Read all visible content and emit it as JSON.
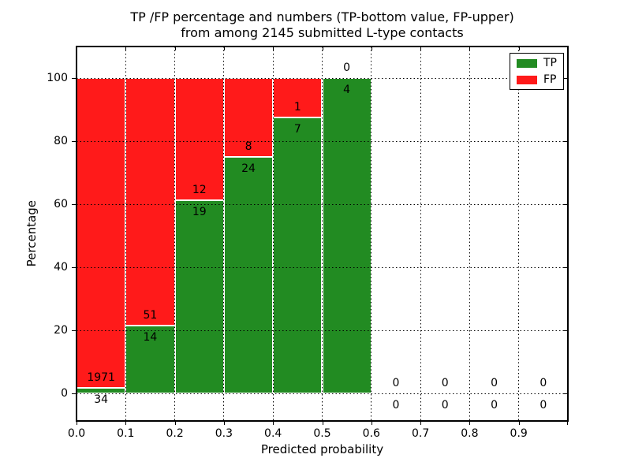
{
  "figure": {
    "title_line1": "TP /FP percentage and numbers (TP-bottom value, FP-upper)",
    "title_line2": "from among 2145 submitted L-type contacts",
    "xlabel": "Predicted probability",
    "ylabel": "Percentage"
  },
  "legend": {
    "items": [
      {
        "label": "TP",
        "color": "#228B22"
      },
      {
        "label": "FP",
        "color": "#FF1A1A"
      }
    ]
  },
  "colors": {
    "tp": "#228B22",
    "fp": "#FF1A1A",
    "grid": "#000000",
    "spine": "#000000",
    "background": "#ffffff"
  },
  "chart_data": {
    "type": "bar",
    "stacked": true,
    "normalized_to_percent": true,
    "title": "TP /FP percentage and numbers (TP-bottom value, FP-upper) from among 2145 submitted L-type contacts",
    "xlabel": "Predicted probability",
    "ylabel": "Percentage",
    "x_tick_labels": [
      "0.0",
      "0.1",
      "0.2",
      "0.3",
      "0.4",
      "0.5",
      "0.6",
      "0.7",
      "0.8",
      "0.9"
    ],
    "y_ticks": [
      0,
      20,
      40,
      60,
      80,
      100
    ],
    "xlim": [
      0.0,
      1.0
    ],
    "ylim": [
      -10,
      110
    ],
    "grid": "dotted",
    "legend_position": "upper right",
    "total_submitted": 2145,
    "series": [
      {
        "name": "TP",
        "counts": [
          34,
          14,
          19,
          24,
          7,
          4,
          0,
          0,
          0,
          0
        ]
      },
      {
        "name": "FP",
        "counts": [
          1971,
          51,
          12,
          8,
          1,
          0,
          0,
          0,
          0,
          0
        ]
      }
    ],
    "bins": [
      {
        "x_start": 0.0,
        "x_end": 0.1,
        "tp_count": 34,
        "fp_count": 1971,
        "tp_pct": 1.7,
        "fp_pct": 98.3
      },
      {
        "x_start": 0.1,
        "x_end": 0.2,
        "tp_count": 14,
        "fp_count": 51,
        "tp_pct": 21.5,
        "fp_pct": 78.5
      },
      {
        "x_start": 0.2,
        "x_end": 0.3,
        "tp_count": 19,
        "fp_count": 12,
        "tp_pct": 61.3,
        "fp_pct": 38.7
      },
      {
        "x_start": 0.3,
        "x_end": 0.4,
        "tp_count": 24,
        "fp_count": 8,
        "tp_pct": 75.0,
        "fp_pct": 25.0
      },
      {
        "x_start": 0.4,
        "x_end": 0.5,
        "tp_count": 7,
        "fp_count": 1,
        "tp_pct": 87.5,
        "fp_pct": 12.5
      },
      {
        "x_start": 0.5,
        "x_end": 0.6,
        "tp_count": 4,
        "fp_count": 0,
        "tp_pct": 100.0,
        "fp_pct": 0.0
      },
      {
        "x_start": 0.6,
        "x_end": 0.7,
        "tp_count": 0,
        "fp_count": 0,
        "tp_pct": 0.0,
        "fp_pct": 0.0
      },
      {
        "x_start": 0.7,
        "x_end": 0.8,
        "tp_count": 0,
        "fp_count": 0,
        "tp_pct": 0.0,
        "fp_pct": 0.0
      },
      {
        "x_start": 0.8,
        "x_end": 0.9,
        "tp_count": 0,
        "fp_count": 0,
        "tp_pct": 0.0,
        "fp_pct": 0.0
      },
      {
        "x_start": 0.9,
        "x_end": 1.0,
        "tp_count": 0,
        "fp_count": 0,
        "tp_pct": 0.0,
        "fp_pct": 0.0
      }
    ]
  }
}
